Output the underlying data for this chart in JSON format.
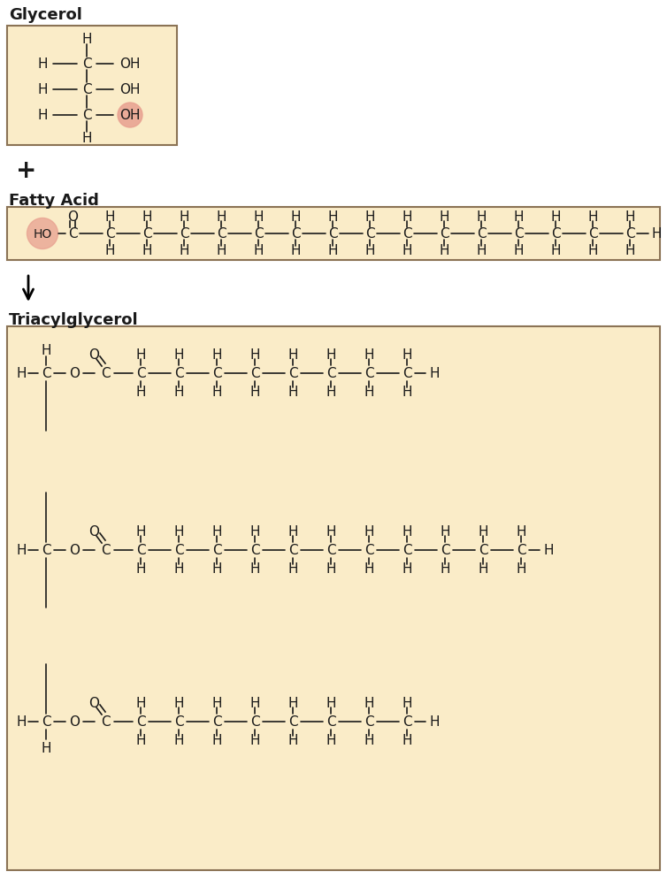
{
  "bg_color": "#FAECC8",
  "box_edge_color": "#8B7355",
  "atom_color": "#1a1a1a",
  "highlight_red": "#E8A090",
  "section_titles": [
    "Glycerol",
    "Fatty Acid",
    "Triacylglycerol"
  ],
  "font_size_title": 13,
  "font_size_atom": 11,
  "font_size_plus": 20
}
